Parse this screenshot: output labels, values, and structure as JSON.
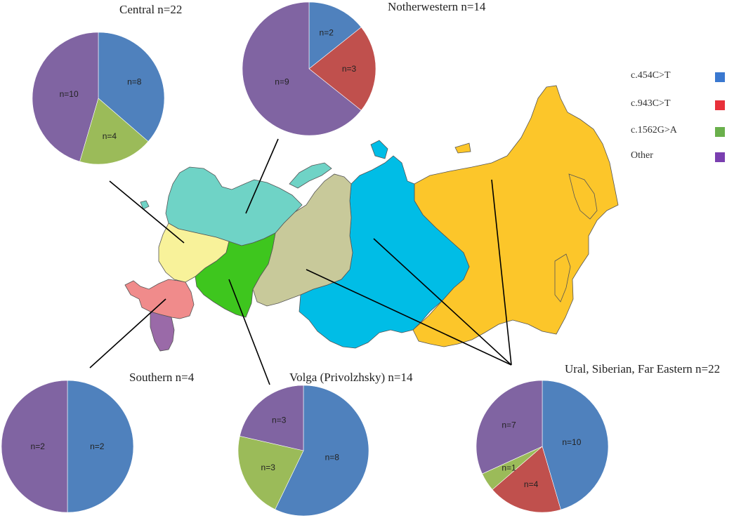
{
  "legend": [
    {
      "label": "c.454C>T",
      "color": "#4f81bd"
    },
    {
      "label": "c.943C>T",
      "color": "#c0504d"
    },
    {
      "label": "c.1562G>A",
      "color": "#9bbb59"
    },
    {
      "label": "Other",
      "color": "#8064a2"
    }
  ],
  "legend_swatch_colors": [
    "#3a78d0",
    "#e8303a",
    "#6ab04c",
    "#7a3fb0"
  ],
  "regions_map": [
    {
      "name": "Northwestern",
      "color": "#6fd3c6"
    },
    {
      "name": "Central",
      "color": "#f8f29a"
    },
    {
      "name": "Southern",
      "color": "#f08b8b"
    },
    {
      "name": "North Caucasus",
      "color": "#9a6aa8"
    },
    {
      "name": "Volga",
      "color": "#3ec61e"
    },
    {
      "name": "Ural",
      "color": "#c8c99a"
    },
    {
      "name": "Siberian",
      "color": "#00bde6"
    },
    {
      "name": "Far Eastern",
      "color": "#fcc62a"
    }
  ],
  "chart_data": [
    {
      "type": "pie",
      "title": "Central  n=22",
      "slices": [
        {
          "category": "c.454C>T",
          "value": 8,
          "label": "n=8"
        },
        {
          "category": "c.1562G>A",
          "value": 4,
          "label": "n=4"
        },
        {
          "category": "Other",
          "value": 10,
          "label": "n=10"
        }
      ]
    },
    {
      "type": "pie",
      "title": "Notherwestern  n=14",
      "slices": [
        {
          "category": "c.454C>T",
          "value": 2,
          "label": "n=2"
        },
        {
          "category": "c.943C>T",
          "value": 3,
          "label": "n=3"
        },
        {
          "category": "Other",
          "value": 9,
          "label": "n=9"
        }
      ]
    },
    {
      "type": "pie",
      "title": "Southern  n=4",
      "slices": [
        {
          "category": "c.454C>T",
          "value": 2,
          "label": "n=2"
        },
        {
          "category": "Other",
          "value": 2,
          "label": "n=2"
        }
      ]
    },
    {
      "type": "pie",
      "title": "Volga (Privolzhsky)  n=14",
      "slices": [
        {
          "category": "c.454C>T",
          "value": 8,
          "label": "n=8"
        },
        {
          "category": "c.1562G>A",
          "value": 3,
          "label": "n=3"
        },
        {
          "category": "Other",
          "value": 3,
          "label": "n=3"
        }
      ]
    },
    {
      "type": "pie",
      "title": "Ural,  Siberian,  Far Eastern  n=22",
      "slices": [
        {
          "category": "c.454C>T",
          "value": 10,
          "label": "n=10"
        },
        {
          "category": "c.943C>T",
          "value": 4,
          "label": "n=4"
        },
        {
          "category": "c.1562G>A",
          "value": 1,
          "label": "n=1"
        },
        {
          "category": "Other",
          "value": 7,
          "label": "n=7"
        }
      ]
    }
  ]
}
